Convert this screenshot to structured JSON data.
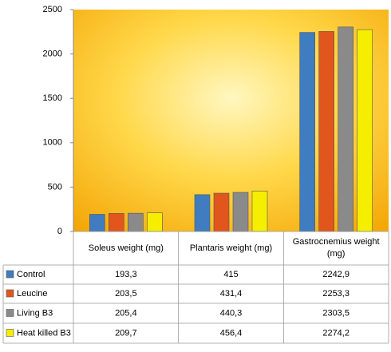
{
  "chart_data": {
    "type": "bar",
    "categories": [
      "Soleus weight (mg)",
      "Plantaris weight (mg)",
      "Gastrocnemius weight (mg)"
    ],
    "series": [
      {
        "name": "Control",
        "color": "#3f7cc0",
        "values": [
          193.3,
          415,
          2242.9
        ],
        "value_labels": [
          "193,3",
          "415",
          "2242,9"
        ]
      },
      {
        "name": "Leucine",
        "color": "#e0561c",
        "values": [
          203.5,
          431.4,
          2253.3
        ],
        "value_labels": [
          "203,5",
          "431,4",
          "2253,3"
        ]
      },
      {
        "name": "Living B3",
        "color": "#8a8a8a",
        "values": [
          205.4,
          440.3,
          2303.5
        ],
        "value_labels": [
          "205,4",
          "440,3",
          "2303,5"
        ]
      },
      {
        "name": "Heat killed B3",
        "color": "#f5ee00",
        "values": [
          209.7,
          456.4,
          2274.2
        ],
        "value_labels": [
          "209,7",
          "456,4",
          "2274,2"
        ]
      }
    ],
    "ylim": [
      0,
      2500
    ],
    "yticks": [
      0,
      500,
      1000,
      1500,
      2000,
      2500
    ],
    "grid": false
  }
}
